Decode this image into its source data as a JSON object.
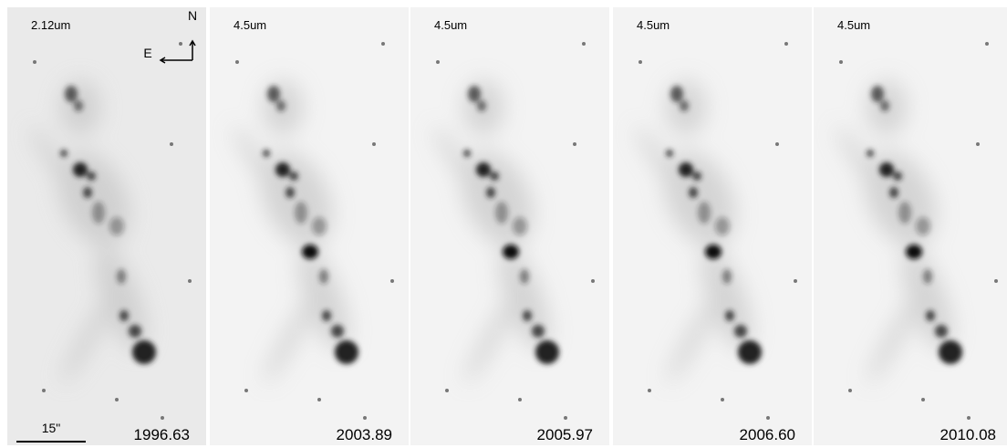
{
  "panels": [
    {
      "band": "2.12um",
      "epoch": "1996.63"
    },
    {
      "band": "4.5um",
      "epoch": "2003.89"
    },
    {
      "band": "4.5um",
      "epoch": "2005.97"
    },
    {
      "band": "4.5um",
      "epoch": "2006.60"
    },
    {
      "band": "4.5um",
      "epoch": "2010.08"
    }
  ],
  "compass": {
    "north": "N",
    "east": "E"
  },
  "scale_bar": {
    "label": "15\""
  }
}
